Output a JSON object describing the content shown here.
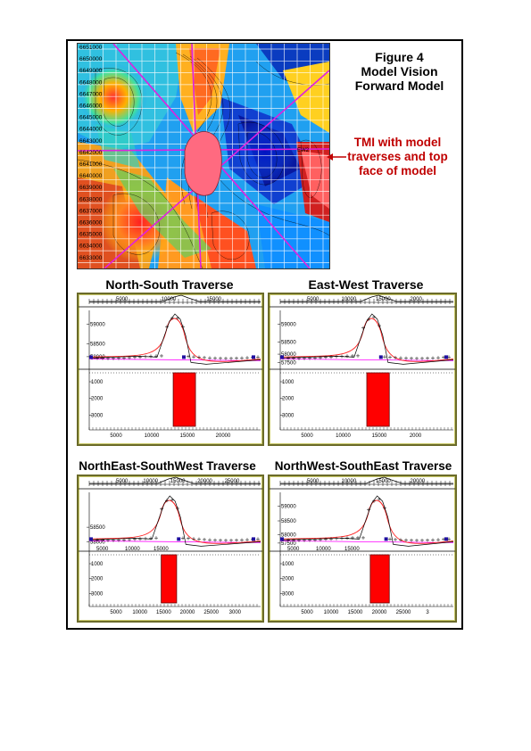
{
  "figure": {
    "title_lines": [
      "Figure 4",
      "Model Vision",
      "Forward Model"
    ]
  },
  "map": {
    "northing_labels": [
      "6651000",
      "6650000",
      "6649000",
      "6648000",
      "6647000",
      "6646000",
      "6645000",
      "6644000",
      "6643000",
      "6642000",
      "6641000",
      "6640000",
      "6639000",
      "6638000",
      "6637000",
      "6636000",
      "6635000",
      "6634000",
      "6633000"
    ],
    "traverse_label": "EW2"
  },
  "annotation": {
    "lines": [
      "TMI with model",
      "traverses and top",
      "face of model"
    ],
    "color": "#c00000"
  },
  "panels": [
    {
      "title": "North-South Traverse",
      "top_axis": [
        "5000",
        "10000",
        "15000"
      ],
      "mag_labels": [
        "59000",
        "58500",
        "58000"
      ],
      "depth_labels": [
        "1000",
        "2000",
        "3000"
      ],
      "x_labels": [
        "5000",
        "10000",
        "15000",
        "20000"
      ]
    },
    {
      "title": "East-West Traverse",
      "top_axis": [
        "5000",
        "10000",
        "15000",
        "2000"
      ],
      "mag_labels": [
        "59000",
        "58500",
        "58000",
        "57500"
      ],
      "depth_labels": [
        "1000",
        "2000",
        "3000"
      ],
      "x_labels": [
        "5000",
        "10000",
        "15000",
        "2000"
      ]
    },
    {
      "title": "NorthEast-SouthWest Traverse",
      "top_axis": [
        "5000",
        "10000",
        "15000",
        "20000",
        "25000"
      ],
      "mag_labels": [
        "58500",
        "58000"
      ],
      "depth_labels": [
        "1000",
        "2000",
        "3000"
      ],
      "x_labels": [
        "5000",
        "10000",
        "15000",
        "20000",
        "25000",
        "3000"
      ],
      "mid_axis": [
        "5000",
        "10000",
        "15000"
      ]
    },
    {
      "title": "NorthWest-SouthEast Traverse",
      "top_axis": [
        "5000",
        "10000",
        "15000",
        "20000"
      ],
      "mag_labels": [
        "59000",
        "58500",
        "58000",
        "57500"
      ],
      "depth_labels": [
        "1000",
        "2000",
        "3000"
      ],
      "x_labels": [
        "5000",
        "10000",
        "15000",
        "20000",
        "25000",
        "3"
      ],
      "mid_axis": [
        "5000",
        "10000",
        "15000"
      ]
    }
  ],
  "colors": {
    "model_body": "#ff0000",
    "observed": "#000000",
    "calculated": "#ff2020",
    "regional": "#ff00ff",
    "panel_border": "#6b6b2a"
  }
}
